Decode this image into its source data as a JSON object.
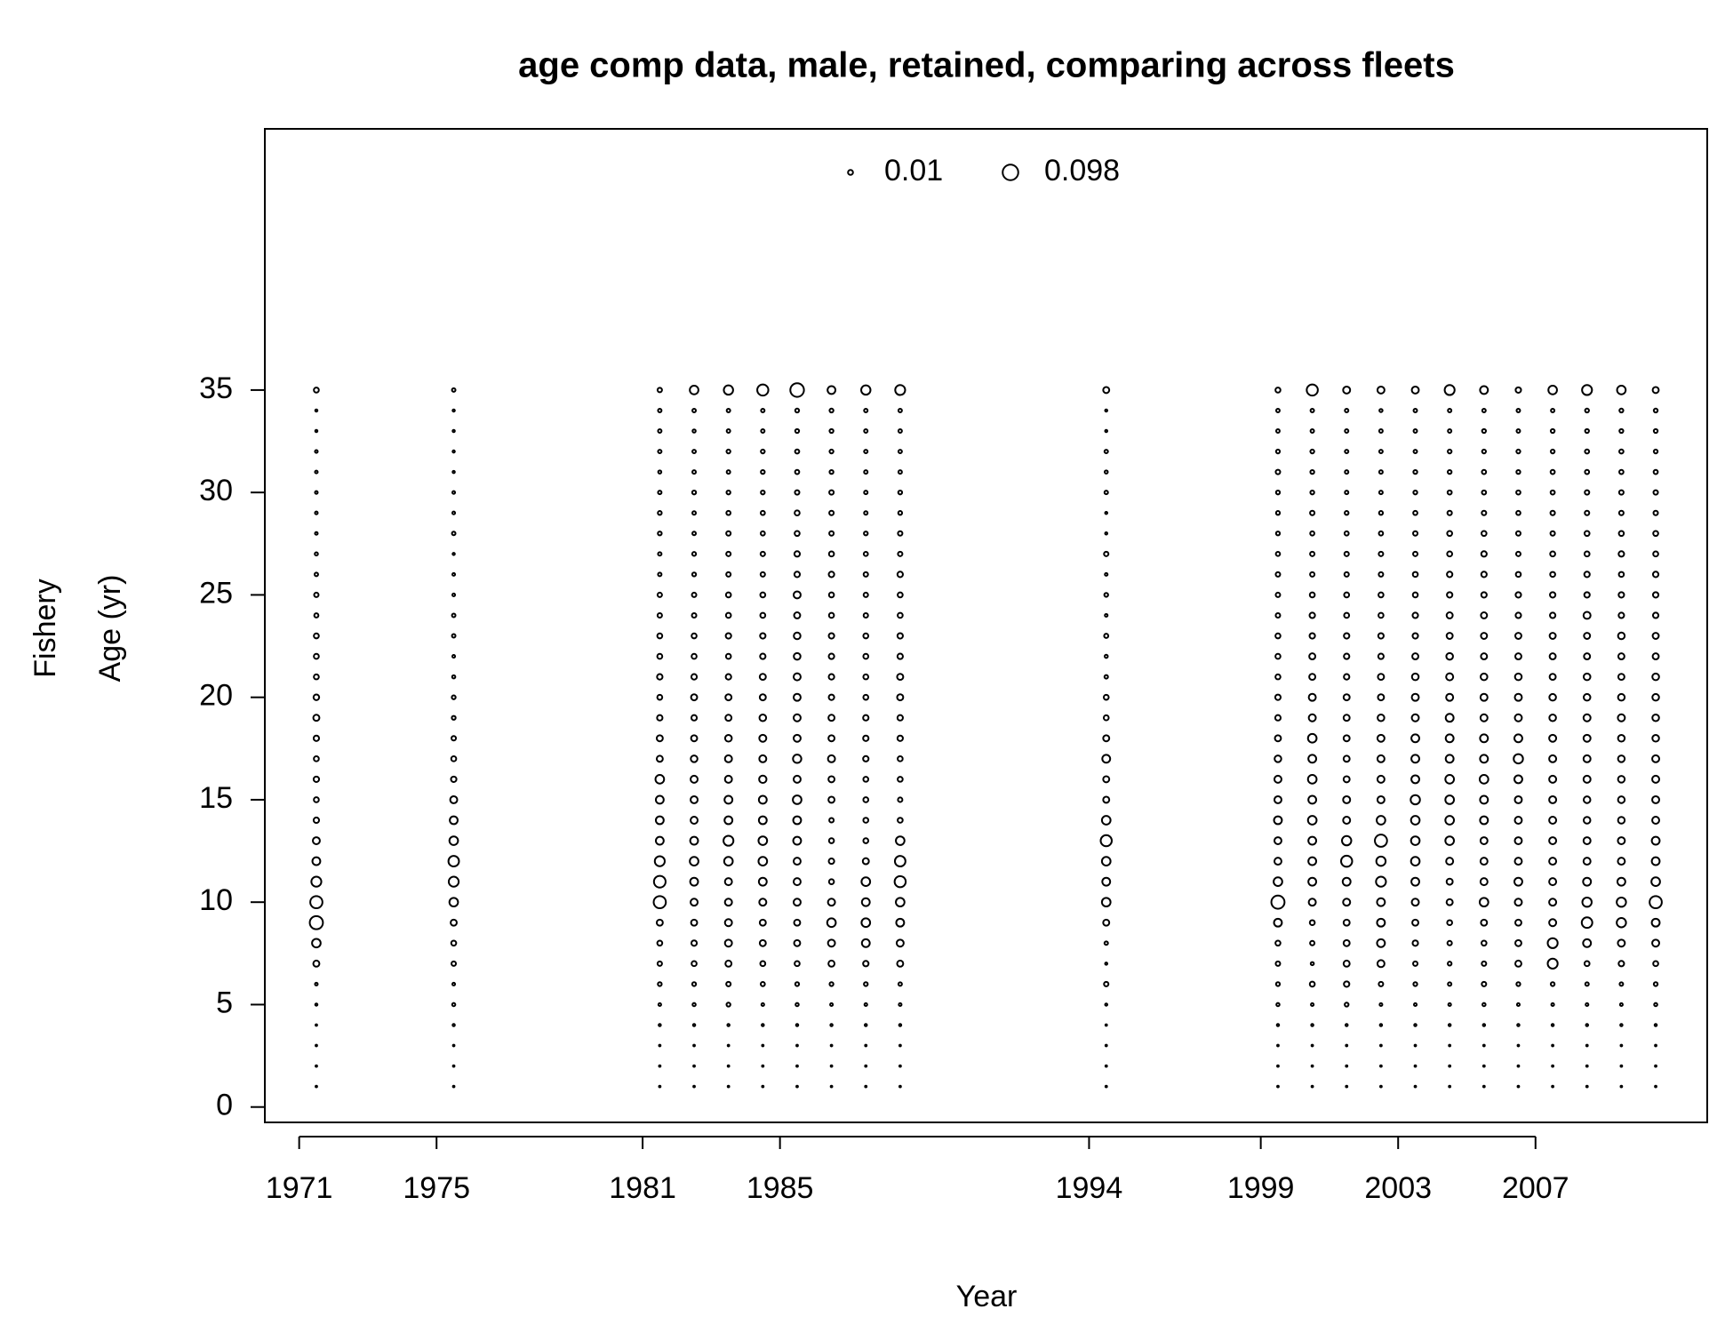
{
  "chart_data": {
    "type": "bubble",
    "title": "age comp data, male, retained, comparing across fleets",
    "xlabel": "Year",
    "ylabel_lines": [
      "Fishery",
      "Age (yr)"
    ],
    "xlim": [
      1970,
      2012
    ],
    "ylim": [
      -0.75,
      47.75
    ],
    "xticks": [
      1971,
      1975,
      1981,
      1985,
      1994,
      1999,
      2003,
      2007
    ],
    "yticks": [
      0,
      5,
      10,
      15,
      20,
      25,
      30,
      35
    ],
    "color": "#000000",
    "size_legend": [
      0.01,
      0.098
    ],
    "ages": [
      1,
      2,
      3,
      4,
      5,
      6,
      7,
      8,
      9,
      10,
      11,
      12,
      13,
      14,
      15,
      16,
      17,
      18,
      19,
      20,
      21,
      22,
      23,
      24,
      25,
      26,
      27,
      28,
      29,
      30,
      31,
      32,
      33,
      34,
      35
    ],
    "columns": [
      {
        "x": 1971.5,
        "values": [
          0.001,
          0.001,
          0.001,
          0.001,
          0.002,
          0.003,
          0.015,
          0.03,
          0.07,
          0.06,
          0.04,
          0.025,
          0.02,
          0.012,
          0.01,
          0.012,
          0.01,
          0.012,
          0.015,
          0.013,
          0.01,
          0.01,
          0.01,
          0.007,
          0.008,
          0.005,
          0.004,
          0.003,
          0.003,
          0.003,
          0.003,
          0.003,
          0.002,
          0.002,
          0.01
        ]
      },
      {
        "x": 1975.5,
        "values": [
          0.001,
          0.001,
          0.001,
          0.002,
          0.004,
          0.003,
          0.008,
          0.01,
          0.015,
          0.03,
          0.04,
          0.045,
          0.03,
          0.025,
          0.02,
          0.012,
          0.01,
          0.008,
          0.006,
          0.006,
          0.004,
          0.003,
          0.005,
          0.005,
          0.003,
          0.003,
          0.002,
          0.005,
          0.003,
          0.003,
          0.002,
          0.002,
          0.002,
          0.002,
          0.005
        ]
      },
      {
        "x": 1981.5,
        "values": [
          0.001,
          0.001,
          0.001,
          0.002,
          0.003,
          0.006,
          0.008,
          0.01,
          0.015,
          0.06,
          0.055,
          0.04,
          0.025,
          0.025,
          0.025,
          0.03,
          0.015,
          0.015,
          0.012,
          0.01,
          0.012,
          0.01,
          0.01,
          0.008,
          0.008,
          0.005,
          0.005,
          0.006,
          0.006,
          0.005,
          0.004,
          0.005,
          0.005,
          0.005,
          0.008
        ]
      },
      {
        "x": 1982.5,
        "values": [
          0.001,
          0.001,
          0.001,
          0.002,
          0.004,
          0.006,
          0.01,
          0.012,
          0.015,
          0.02,
          0.025,
          0.03,
          0.025,
          0.02,
          0.02,
          0.02,
          0.018,
          0.015,
          0.012,
          0.015,
          0.012,
          0.01,
          0.01,
          0.008,
          0.008,
          0.006,
          0.006,
          0.005,
          0.005,
          0.006,
          0.005,
          0.005,
          0.004,
          0.005,
          0.03
        ]
      },
      {
        "x": 1983.5,
        "values": [
          0.001,
          0.001,
          0.001,
          0.002,
          0.006,
          0.008,
          0.015,
          0.02,
          0.02,
          0.02,
          0.02,
          0.03,
          0.04,
          0.025,
          0.025,
          0.02,
          0.02,
          0.018,
          0.015,
          0.015,
          0.012,
          0.01,
          0.012,
          0.01,
          0.01,
          0.008,
          0.008,
          0.008,
          0.007,
          0.006,
          0.005,
          0.006,
          0.005,
          0.005,
          0.035
        ]
      },
      {
        "x": 1984.5,
        "values": [
          0.001,
          0.001,
          0.001,
          0.002,
          0.003,
          0.007,
          0.01,
          0.015,
          0.015,
          0.02,
          0.025,
          0.03,
          0.03,
          0.025,
          0.025,
          0.022,
          0.02,
          0.02,
          0.018,
          0.015,
          0.015,
          0.012,
          0.012,
          0.01,
          0.01,
          0.008,
          0.008,
          0.007,
          0.007,
          0.006,
          0.006,
          0.006,
          0.005,
          0.005,
          0.05
        ]
      },
      {
        "x": 1985.5,
        "values": [
          0.001,
          0.001,
          0.001,
          0.002,
          0.004,
          0.006,
          0.01,
          0.015,
          0.015,
          0.02,
          0.02,
          0.02,
          0.025,
          0.025,
          0.03,
          0.02,
          0.028,
          0.02,
          0.02,
          0.02,
          0.02,
          0.018,
          0.018,
          0.015,
          0.02,
          0.012,
          0.012,
          0.01,
          0.01,
          0.008,
          0.007,
          0.007,
          0.006,
          0.006,
          0.075
        ]
      },
      {
        "x": 1986.5,
        "values": [
          0.001,
          0.001,
          0.001,
          0.002,
          0.003,
          0.006,
          0.015,
          0.02,
          0.03,
          0.02,
          0.01,
          0.012,
          0.01,
          0.008,
          0.015,
          0.015,
          0.02,
          0.015,
          0.015,
          0.012,
          0.012,
          0.012,
          0.012,
          0.01,
          0.01,
          0.012,
          0.01,
          0.008,
          0.008,
          0.008,
          0.006,
          0.006,
          0.006,
          0.006,
          0.025
        ]
      },
      {
        "x": 1987.5,
        "values": [
          0.001,
          0.001,
          0.001,
          0.002,
          0.003,
          0.006,
          0.012,
          0.025,
          0.03,
          0.025,
          0.03,
          0.015,
          0.01,
          0.01,
          0.01,
          0.01,
          0.012,
          0.012,
          0.012,
          0.01,
          0.01,
          0.01,
          0.01,
          0.008,
          0.008,
          0.008,
          0.007,
          0.006,
          0.005,
          0.005,
          0.005,
          0.005,
          0.005,
          0.005,
          0.035
        ]
      },
      {
        "x": 1988.5,
        "values": [
          0.001,
          0.001,
          0.001,
          0.002,
          0.003,
          0.005,
          0.015,
          0.02,
          0.025,
          0.03,
          0.05,
          0.045,
          0.03,
          0.01,
          0.008,
          0.01,
          0.01,
          0.012,
          0.012,
          0.015,
          0.015,
          0.012,
          0.012,
          0.01,
          0.01,
          0.012,
          0.008,
          0.008,
          0.006,
          0.006,
          0.005,
          0.005,
          0.005,
          0.005,
          0.04
        ]
      },
      {
        "x": 1994.5,
        "values": [
          0.001,
          0.001,
          0.001,
          0.001,
          0.002,
          0.008,
          0.002,
          0.005,
          0.015,
          0.03,
          0.025,
          0.03,
          0.05,
          0.03,
          0.015,
          0.015,
          0.025,
          0.015,
          0.01,
          0.01,
          0.005,
          0.004,
          0.007,
          0.003,
          0.006,
          0.003,
          0.008,
          0.002,
          0.002,
          0.005,
          0.004,
          0.005,
          0.002,
          0.002,
          0.015
        ]
      },
      {
        "x": 1999.5,
        "values": [
          0.001,
          0.001,
          0.001,
          0.002,
          0.004,
          0.006,
          0.008,
          0.01,
          0.025,
          0.07,
          0.03,
          0.02,
          0.02,
          0.025,
          0.02,
          0.02,
          0.018,
          0.015,
          0.012,
          0.012,
          0.01,
          0.01,
          0.01,
          0.008,
          0.008,
          0.008,
          0.007,
          0.006,
          0.006,
          0.006,
          0.008,
          0.006,
          0.005,
          0.005,
          0.01
        ]
      },
      {
        "x": 2000.5,
        "values": [
          0.001,
          0.001,
          0.001,
          0.002,
          0.003,
          0.01,
          0.004,
          0.008,
          0.01,
          0.02,
          0.025,
          0.025,
          0.025,
          0.03,
          0.025,
          0.03,
          0.025,
          0.03,
          0.02,
          0.02,
          0.015,
          0.015,
          0.012,
          0.012,
          0.01,
          0.008,
          0.008,
          0.007,
          0.008,
          0.006,
          0.006,
          0.006,
          0.005,
          0.005,
          0.05
        ]
      },
      {
        "x": 2001.5,
        "values": [
          0.001,
          0.001,
          0.001,
          0.002,
          0.006,
          0.012,
          0.015,
          0.015,
          0.015,
          0.02,
          0.025,
          0.05,
          0.035,
          0.02,
          0.02,
          0.015,
          0.015,
          0.015,
          0.015,
          0.015,
          0.012,
          0.012,
          0.012,
          0.01,
          0.01,
          0.008,
          0.008,
          0.007,
          0.006,
          0.005,
          0.005,
          0.005,
          0.005,
          0.005,
          0.02
        ]
      },
      {
        "x": 2002.5,
        "values": [
          0.001,
          0.001,
          0.001,
          0.002,
          0.003,
          0.008,
          0.02,
          0.025,
          0.025,
          0.025,
          0.04,
          0.035,
          0.06,
          0.03,
          0.02,
          0.02,
          0.02,
          0.02,
          0.018,
          0.015,
          0.015,
          0.012,
          0.012,
          0.01,
          0.01,
          0.008,
          0.008,
          0.007,
          0.006,
          0.005,
          0.005,
          0.005,
          0.005,
          0.004,
          0.02
        ]
      },
      {
        "x": 2003.5,
        "values": [
          0.001,
          0.001,
          0.001,
          0.002,
          0.003,
          0.006,
          0.008,
          0.012,
          0.015,
          0.02,
          0.025,
          0.03,
          0.03,
          0.03,
          0.035,
          0.025,
          0.025,
          0.025,
          0.02,
          0.02,
          0.018,
          0.015,
          0.012,
          0.012,
          0.01,
          0.01,
          0.008,
          0.008,
          0.007,
          0.006,
          0.006,
          0.005,
          0.005,
          0.005,
          0.02
        ]
      },
      {
        "x": 2004.5,
        "values": [
          0.001,
          0.001,
          0.001,
          0.002,
          0.003,
          0.005,
          0.006,
          0.008,
          0.01,
          0.015,
          0.015,
          0.02,
          0.03,
          0.03,
          0.03,
          0.03,
          0.025,
          0.025,
          0.025,
          0.02,
          0.02,
          0.018,
          0.015,
          0.015,
          0.012,
          0.012,
          0.01,
          0.01,
          0.008,
          0.007,
          0.006,
          0.006,
          0.005,
          0.005,
          0.04
        ]
      },
      {
        "x": 2005.5,
        "values": [
          0.001,
          0.001,
          0.001,
          0.002,
          0.004,
          0.008,
          0.008,
          0.01,
          0.015,
          0.03,
          0.02,
          0.02,
          0.02,
          0.025,
          0.025,
          0.03,
          0.025,
          0.025,
          0.02,
          0.02,
          0.018,
          0.015,
          0.015,
          0.015,
          0.012,
          0.012,
          0.012,
          0.01,
          0.008,
          0.007,
          0.007,
          0.006,
          0.006,
          0.005,
          0.025
        ]
      },
      {
        "x": 2006.5,
        "values": [
          0.001,
          0.001,
          0.001,
          0.002,
          0.003,
          0.006,
          0.015,
          0.015,
          0.015,
          0.02,
          0.025,
          0.02,
          0.02,
          0.02,
          0.02,
          0.025,
          0.035,
          0.025,
          0.02,
          0.02,
          0.018,
          0.015,
          0.015,
          0.012,
          0.012,
          0.01,
          0.008,
          0.008,
          0.007,
          0.007,
          0.006,
          0.006,
          0.005,
          0.005,
          0.012
        ]
      },
      {
        "x": 2007.5,
        "values": [
          0.001,
          0.001,
          0.001,
          0.002,
          0.003,
          0.006,
          0.04,
          0.04,
          0.02,
          0.02,
          0.02,
          0.02,
          0.02,
          0.02,
          0.02,
          0.02,
          0.02,
          0.02,
          0.018,
          0.018,
          0.015,
          0.015,
          0.015,
          0.012,
          0.012,
          0.01,
          0.01,
          0.008,
          0.008,
          0.007,
          0.007,
          0.006,
          0.006,
          0.005,
          0.03
        ]
      },
      {
        "x": 2008.5,
        "values": [
          0.001,
          0.001,
          0.001,
          0.002,
          0.003,
          0.005,
          0.01,
          0.025,
          0.045,
          0.035,
          0.025,
          0.02,
          0.02,
          0.018,
          0.018,
          0.02,
          0.02,
          0.02,
          0.02,
          0.018,
          0.018,
          0.015,
          0.015,
          0.02,
          0.012,
          0.012,
          0.01,
          0.01,
          0.008,
          0.008,
          0.007,
          0.007,
          0.006,
          0.006,
          0.04
        ]
      },
      {
        "x": 2009.5,
        "values": [
          0.001,
          0.001,
          0.001,
          0.002,
          0.003,
          0.005,
          0.012,
          0.02,
          0.035,
          0.035,
          0.025,
          0.02,
          0.02,
          0.018,
          0.018,
          0.018,
          0.018,
          0.018,
          0.02,
          0.018,
          0.015,
          0.015,
          0.018,
          0.012,
          0.012,
          0.01,
          0.012,
          0.01,
          0.008,
          0.008,
          0.007,
          0.007,
          0.006,
          0.006,
          0.03
        ]
      },
      {
        "x": 2010.5,
        "values": [
          0.001,
          0.001,
          0.001,
          0.002,
          0.004,
          0.006,
          0.01,
          0.02,
          0.025,
          0.06,
          0.03,
          0.025,
          0.025,
          0.02,
          0.02,
          0.02,
          0.02,
          0.018,
          0.018,
          0.018,
          0.018,
          0.015,
          0.015,
          0.012,
          0.012,
          0.012,
          0.01,
          0.01,
          0.008,
          0.008,
          0.007,
          0.006,
          0.006,
          0.006,
          0.015
        ]
      }
    ]
  }
}
